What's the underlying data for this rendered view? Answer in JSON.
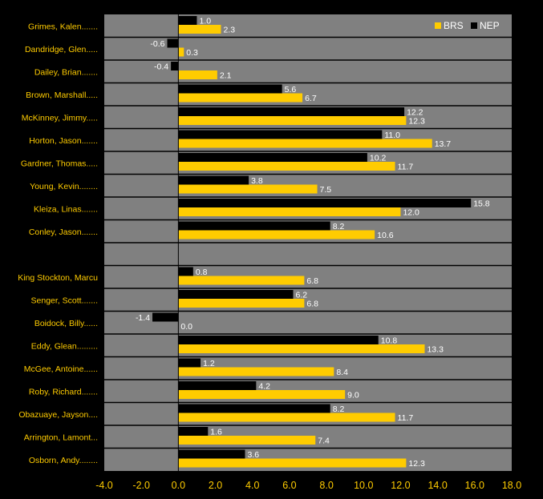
{
  "chart_data": {
    "type": "bar",
    "orientation": "horizontal",
    "categories": [
      "Grimes, Kalen.......",
      "Dandridge, Glen.....",
      "Dailey, Brian.......",
      "Brown, Marshall.....",
      "McKinney, Jimmy.....",
      "Horton, Jason.......",
      "Gardner, Thomas.....",
      "Young, Kevin........",
      "Kleiza, Linas.......",
      "Conley, Jason.......",
      "",
      "King Stockton, Marcu",
      "Senger, Scott.......",
      "Boidock, Billy......",
      "Eddy, Glean.........",
      "McGee, Antoine......",
      "Roby, Richard.......",
      "Obazuaye, Jayson....",
      "Arrington, Lamont...",
      "Osborn, Andy........"
    ],
    "series": [
      {
        "name": "NEP",
        "color": "#000000",
        "values": [
          1.0,
          -0.6,
          -0.4,
          5.6,
          12.2,
          11.0,
          10.2,
          3.8,
          15.8,
          8.2,
          null,
          0.8,
          6.2,
          -1.4,
          10.8,
          1.2,
          4.2,
          8.2,
          1.6,
          3.6
        ],
        "labels": [
          "1.0",
          "-0.6",
          "-0.4",
          "5.6",
          "12.2",
          "11.0",
          "10.2",
          "3.8",
          "15.8",
          "8.2",
          "",
          "0.8",
          "6.2",
          "-1.4",
          "10.8",
          "1.2",
          "4.2",
          "8.2",
          "1.6",
          "3.6"
        ]
      },
      {
        "name": "BRS",
        "color": "#ffcc00",
        "values": [
          2.3,
          0.3,
          2.1,
          6.7,
          12.3,
          13.7,
          11.7,
          7.5,
          12.0,
          10.6,
          null,
          6.8,
          6.8,
          0.0,
          13.3,
          8.4,
          9.0,
          11.7,
          7.4,
          12.3
        ],
        "labels": [
          "2.3",
          "0.3",
          "2.1",
          "6.7",
          "12.3",
          "13.7",
          "11.7",
          "7.5",
          "12.0",
          "10.6",
          "",
          "6.8",
          "6.8",
          "0.0",
          "13.3",
          "8.4",
          "9.0",
          "11.7",
          "7.4",
          "12.3"
        ]
      }
    ],
    "xlim": [
      -4.0,
      18.0
    ],
    "xticks": [
      "-4.0",
      "-2.0",
      "0.0",
      "2.0",
      "4.0",
      "6.0",
      "8.0",
      "10.0",
      "12.0",
      "14.0",
      "16.0",
      "18.0"
    ],
    "legend": {
      "position": "top-right",
      "entries": [
        {
          "name": "BRS",
          "color": "#ffcc00"
        },
        {
          "name": "NEP",
          "color": "#000000"
        }
      ]
    },
    "colors": {
      "background": "#000000",
      "plot": "#808080",
      "label": "#ffcc00",
      "value_text": "#ffffff"
    }
  }
}
